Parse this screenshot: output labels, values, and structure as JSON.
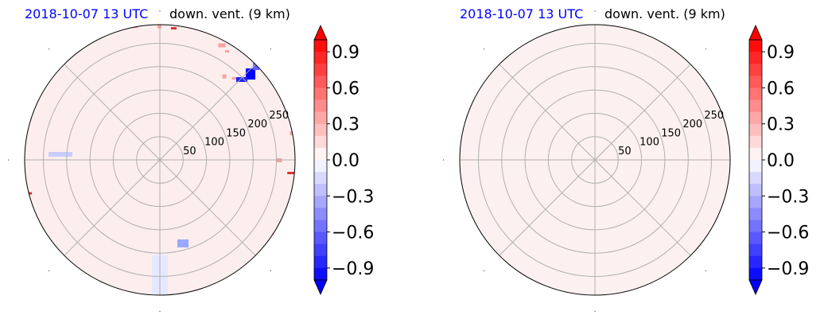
{
  "chart_data": [
    {
      "type": "heatmap",
      "projection": "polar",
      "title_left": "2018-10-07 13 UTC",
      "title_right": "down. vent. (9 km)",
      "radial_ticks": [
        "50",
        "100",
        "150",
        "200",
        "250"
      ],
      "radial_values": [
        50,
        100,
        150,
        200,
        250
      ],
      "r_max": 290,
      "colorbar": {
        "ticks": [
          0.9,
          0.6,
          0.3,
          0.0,
          -0.3,
          -0.6,
          -0.9
        ],
        "tick_labels": [
          "0.9",
          "0.6",
          "0.3",
          "0.0",
          "−0.3",
          "−0.6",
          "−0.9"
        ],
        "range": [
          -1.0,
          1.0
        ],
        "extend": "both",
        "cmap": "bwr"
      },
      "background_color": "#fdeeee",
      "features": [
        {
          "kind": "positive-speckles",
          "color": "#f08080",
          "location": "rim"
        },
        {
          "kind": "negative-blob",
          "color": "#0000ff",
          "location": "upper-right near r=250"
        },
        {
          "kind": "negative-patch",
          "color": "#9aa8ff",
          "location": "lower-right"
        }
      ]
    },
    {
      "type": "heatmap",
      "projection": "polar",
      "title_left": "2018-10-07 13 UTC",
      "title_right": "down. vent. (9 km)",
      "radial_ticks": [
        "50",
        "100",
        "150",
        "200",
        "250"
      ],
      "radial_values": [
        50,
        100,
        150,
        200,
        250
      ],
      "r_max": 290,
      "colorbar": {
        "ticks": [
          0.9,
          0.6,
          0.3,
          0.0,
          -0.3,
          -0.6,
          -0.9
        ],
        "tick_labels": [
          "0.9",
          "0.6",
          "0.3",
          "0.0",
          "−0.3",
          "−0.6",
          "−0.9"
        ],
        "range": [
          -1.0,
          1.0
        ],
        "extend": "both",
        "cmap": "bwr"
      },
      "background_color": "#fdf0f0",
      "features": []
    }
  ]
}
